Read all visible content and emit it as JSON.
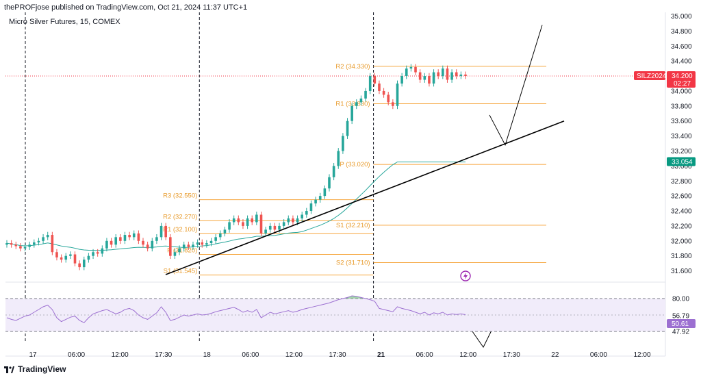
{
  "header": {
    "published": "thePROFjose published on TradingView.com, Oct 21, 2024 11:37 UTC+1",
    "symbol": "Micro Silver Futures, 15, COMEX"
  },
  "footer": {
    "brand": "TradingView"
  },
  "colors": {
    "up": "#26a69a",
    "down": "#ef5350",
    "level": "#f6a53b",
    "ma": "#26a69a",
    "rsi": "#9c6fd1",
    "rsi_band": "#f1ecfa",
    "price_tag": "#f23645",
    "ma_tag": "#089981",
    "trend": "#000000"
  },
  "chart_data": {
    "type": "candlestick",
    "y_axis": {
      "min": 31.45,
      "max": 35.05,
      "ticks": [
        "35.000",
        "34.800",
        "34.600",
        "34.400",
        "34.200",
        "34.000",
        "33.800",
        "33.600",
        "33.400",
        "33.200",
        "33.000",
        "32.800",
        "32.600",
        "32.400",
        "32.200",
        "32.000",
        "31.800",
        "31.600"
      ]
    },
    "x_axis": {
      "labels": [
        "17",
        "06:00",
        "12:00",
        "17:30",
        "18",
        "06:00",
        "12:00",
        "17:30",
        "21",
        "06:00",
        "12:00",
        "17:30",
        "22",
        "06:00",
        "12:00"
      ],
      "bold": [
        "21"
      ]
    },
    "session_dividers": [
      "17",
      "18",
      "21"
    ],
    "price_tag": {
      "symbol": "SILZ2024",
      "price": "34.200",
      "countdown": "02:27",
      "value": 34.2
    },
    "ma_tag": {
      "price": "33.054",
      "value": 33.054
    },
    "levels_left": [
      {
        "label": "R3 (32.550)",
        "value": 32.55
      },
      {
        "label": "R2 (32.270)",
        "value": 32.27
      },
      {
        "label": "R1 (32.100)",
        "value": 32.1
      },
      {
        "label": "P (31.820)",
        "value": 31.82
      },
      {
        "label": "S1 (31.545)",
        "value": 31.545
      }
    ],
    "levels_right": [
      {
        "label": "R2 (34.330)",
        "value": 34.33
      },
      {
        "label": "R1 (33.830)",
        "value": 33.83
      },
      {
        "label": "P (33.020)",
        "value": 33.02
      },
      {
        "label": "S1 (32.210)",
        "value": 32.21
      },
      {
        "label": "S2 (31.710)",
        "value": 31.71
      }
    ],
    "rsi": {
      "ticks": [
        "80.00",
        "56.79",
        "50.61",
        "47.92"
      ],
      "current": "50.61",
      "upper": 80,
      "lower": 20
    },
    "trendline": [
      [
        31.55,
        0
      ],
      [
        33.6,
        1
      ]
    ],
    "close_series": [
      31.97,
      31.95,
      31.93,
      31.9,
      31.92,
      31.95,
      31.98,
      32.0,
      32.05,
      32.08,
      31.85,
      31.78,
      31.75,
      31.8,
      31.82,
      31.7,
      31.65,
      31.75,
      31.8,
      31.85,
      31.83,
      31.9,
      32.0,
      31.95,
      32.05,
      32.0,
      32.08,
      32.05,
      32.1,
      32.0,
      31.95,
      31.9,
      32.0,
      32.05,
      32.2,
      32.05,
      31.8,
      31.85,
      31.9,
      31.95,
      31.92,
      31.95,
      31.98,
      31.95,
      31.97,
      32.0,
      32.05,
      32.1,
      32.15,
      32.25,
      32.3,
      32.25,
      32.2,
      32.3,
      32.25,
      32.35,
      32.1,
      32.15,
      32.2,
      32.15,
      32.2,
      32.25,
      32.3,
      32.25,
      32.3,
      32.35,
      32.4,
      32.5,
      32.55,
      32.6,
      32.7,
      32.85,
      33.0,
      33.2,
      33.4,
      33.6,
      33.8,
      33.85,
      33.9,
      34.0,
      34.2,
      34.1,
      34.0,
      33.95,
      33.85,
      33.8,
      34.1,
      34.2,
      34.3,
      34.32,
      34.25,
      34.15,
      34.2,
      34.1,
      34.25,
      34.2,
      34.3,
      34.15,
      34.25,
      34.2,
      34.22,
      34.2
    ],
    "rsi_series": [
      45,
      42,
      40,
      44,
      48,
      50,
      55,
      60,
      65,
      68,
      60,
      45,
      38,
      42,
      46,
      48,
      40,
      36,
      45,
      52,
      55,
      58,
      60,
      56,
      52,
      55,
      60,
      62,
      58,
      50,
      45,
      42,
      48,
      54,
      65,
      55,
      40,
      42,
      46,
      50,
      48,
      50,
      52,
      50,
      51,
      53,
      56,
      58,
      60,
      62,
      64,
      60,
      55,
      58,
      55,
      60,
      45,
      50,
      55,
      52,
      54,
      56,
      58,
      55,
      57,
      60,
      62,
      64,
      66,
      68,
      70,
      72,
      75,
      78,
      80,
      82,
      85,
      84,
      82,
      80,
      78,
      75,
      62,
      60,
      58,
      56,
      65,
      62,
      60,
      58,
      55,
      52,
      55,
      50,
      54,
      52,
      55,
      50,
      52,
      51,
      52,
      50.6
    ]
  }
}
